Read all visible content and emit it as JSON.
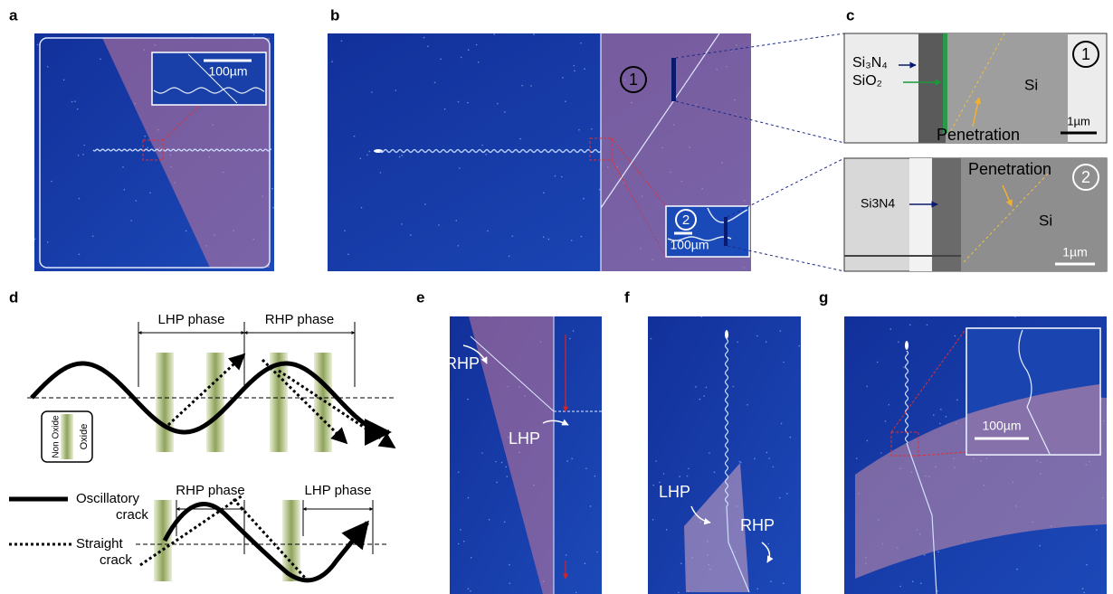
{
  "panels": {
    "a": {
      "label": "a",
      "scale_bar": "100µm"
    },
    "b": {
      "label": "b",
      "marker_1": "1",
      "inset_marker": "2",
      "scale_bar": "100µm"
    },
    "c": {
      "label": "c",
      "top": {
        "marker": "1",
        "si3n4": "Si₃N₄",
        "sio2": "SiO₂",
        "si": "Si",
        "penetration": "Penetration",
        "scale_bar": "1µm"
      },
      "bottom": {
        "marker": "2",
        "penetration": "Penetration",
        "si3n4": "Si3N4",
        "si": "Si",
        "scale_bar": "1µm"
      }
    },
    "d": {
      "label": "d",
      "top_phase_left": "LHP phase",
      "top_phase_right": "RHP phase",
      "legend_non_oxide": "Non Oxide",
      "legend_oxide": "Oxide",
      "bottom_phase_left": "RHP phase",
      "bottom_phase_right": "LHP phase",
      "oscillatory": [
        "Oscillatory",
        "crack"
      ],
      "straight": [
        "Straight",
        "crack"
      ]
    },
    "e": {
      "label": "e",
      "rhp": "RHP",
      "lhp": "LHP"
    },
    "f": {
      "label": "f",
      "lhp": "LHP",
      "rhp": "RHP"
    },
    "g": {
      "label": "g",
      "scale_bar": "100µm"
    }
  }
}
